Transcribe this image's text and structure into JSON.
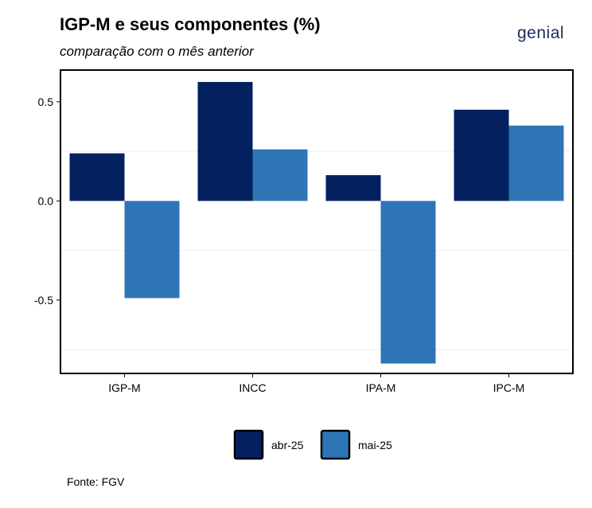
{
  "header": {
    "title": "IGP-M e seus componentes (%)",
    "subtitle": "comparação com o mês anterior",
    "logo": "genial"
  },
  "footer": {
    "source": "Fonte: FGV"
  },
  "colors": {
    "abr": "#03215f",
    "mai": "#2e75b6"
  },
  "chart_data": {
    "type": "bar",
    "title": "IGP-M e seus componentes (%)",
    "subtitle": "comparação com o mês anterior",
    "categories": [
      "IGP-M",
      "INCC",
      "IPA-M",
      "IPC-M"
    ],
    "series": [
      {
        "name": "abr-25",
        "values": [
          0.24,
          0.6,
          0.13,
          0.46
        ]
      },
      {
        "name": "mai-25",
        "values": [
          -0.49,
          0.26,
          -0.82,
          0.38
        ]
      }
    ],
    "yticks": [
      0.5,
      0.0,
      -0.5
    ],
    "ytick_labels": [
      "0.5",
      "0.0",
      "-0.5"
    ],
    "ylim": [
      -0.87,
      0.66
    ],
    "grid": true,
    "legend": "bottom"
  }
}
